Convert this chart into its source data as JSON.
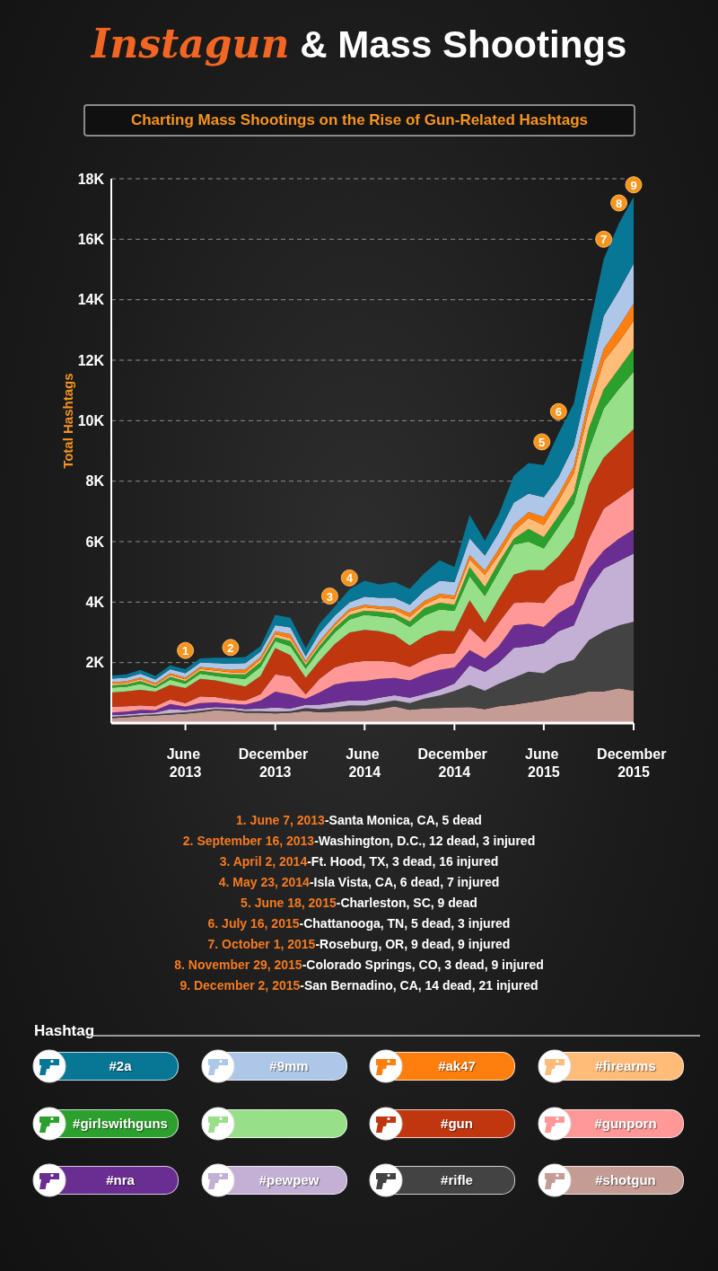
{
  "chart_data": {
    "type": "area",
    "title": "Instagun & Mass Shootings",
    "subtitle": "Charting Mass Shootings on the Rise of Gun-Related Hashtags",
    "ylabel": "Total Hashtags",
    "legend_title": "Hashtag",
    "stacked": true,
    "grid": "y",
    "legend": "bottom",
    "x": [
      "2013-01",
      "2013-02",
      "2013-03",
      "2013-04",
      "2013-05",
      "2013-06",
      "2013-07",
      "2013-08",
      "2013-09",
      "2013-10",
      "2013-11",
      "2013-12",
      "2014-01",
      "2014-02",
      "2014-03",
      "2014-04",
      "2014-05",
      "2014-06",
      "2014-07",
      "2014-08",
      "2014-09",
      "2014-10",
      "2014-11",
      "2014-12",
      "2015-01",
      "2015-02",
      "2015-03",
      "2015-04",
      "2015-05",
      "2015-06",
      "2015-07",
      "2015-08",
      "2015-09",
      "2015-10",
      "2015-11",
      "2015-12"
    ],
    "xlim": [
      "2013-01",
      "2015-12"
    ],
    "xticks": [
      {
        "value": "2013-06",
        "label": "June 2013"
      },
      {
        "value": "2013-12",
        "label": "December 2013"
      },
      {
        "value": "2014-06",
        "label": "June 2014"
      },
      {
        "value": "2014-12",
        "label": "December 2014"
      },
      {
        "value": "2015-06",
        "label": "June 2015"
      },
      {
        "value": "2015-12",
        "label": "December 2015"
      }
    ],
    "ylim": [
      0,
      18000
    ],
    "yticks": [
      {
        "value": 2000,
        "label": "2K"
      },
      {
        "value": 4000,
        "label": "4K"
      },
      {
        "value": 6000,
        "label": "6K"
      },
      {
        "value": 8000,
        "label": "8K"
      },
      {
        "value": 10000,
        "label": "10K"
      },
      {
        "value": 12000,
        "label": "12K"
      },
      {
        "value": 14000,
        "label": "14K"
      },
      {
        "value": 16000,
        "label": "16K"
      },
      {
        "value": 18000,
        "label": "18K"
      }
    ],
    "series": [
      {
        "name": "#shotgun",
        "color": "#c49c94",
        "values": [
          160,
          190,
          230,
          250,
          280,
          310,
          360,
          420,
          400,
          340,
          340,
          320,
          340,
          400,
          360,
          380,
          400,
          410,
          460,
          550,
          440,
          480,
          500,
          520,
          530,
          460,
          560,
          610,
          680,
          760,
          860,
          930,
          1050,
          1050,
          1150,
          1070
        ]
      },
      {
        "name": "#rifle",
        "color": "#434343",
        "values": [
          50,
          50,
          40,
          40,
          50,
          50,
          50,
          50,
          50,
          50,
          50,
          60,
          50,
          100,
          100,
          130,
          190,
          170,
          200,
          200,
          220,
          330,
          410,
          540,
          730,
          610,
          740,
          890,
          1020,
          890,
          1090,
          1160,
          1690,
          1980,
          2080,
          2280
        ]
      },
      {
        "name": "#pewpew",
        "color": "#c5b0d5",
        "values": [
          50,
          50,
          60,
          60,
          130,
          70,
          70,
          60,
          60,
          70,
          90,
          130,
          90,
          100,
          150,
          170,
          160,
          160,
          180,
          170,
          180,
          150,
          200,
          250,
          650,
          620,
          690,
          990,
          840,
          990,
          1090,
          1140,
          1680,
          2080,
          2130,
          2260
        ]
      },
      {
        "name": "#nra",
        "color": "#6a2d91",
        "values": [
          90,
          90,
          110,
          70,
          170,
          110,
          180,
          150,
          130,
          150,
          260,
          530,
          460,
          200,
          400,
          600,
          620,
          650,
          620,
          570,
          570,
          650,
          650,
          530,
          500,
          440,
          540,
          740,
          740,
          540,
          590,
          700,
          690,
          590,
          740,
          790
        ]
      },
      {
        "name": "#gunporn",
        "color": "#ff9896",
        "values": [
          190,
          180,
          150,
          140,
          150,
          120,
          220,
          180,
          140,
          130,
          220,
          570,
          600,
          150,
          450,
          560,
          620,
          670,
          600,
          530,
          450,
          500,
          520,
          470,
          730,
          540,
          790,
          740,
          720,
          790,
          890,
          790,
          990,
          1390,
          1340,
          1390
        ]
      },
      {
        "name": "#gun",
        "color": "#c0370f",
        "values": [
          470,
          490,
          510,
          480,
          480,
          500,
          580,
          550,
          530,
          470,
          600,
          870,
          700,
          550,
          600,
          770,
          1000,
          1020,
          980,
          900,
          700,
          770,
          780,
          730,
          920,
          640,
          790,
          940,
          1060,
          1090,
          990,
          1430,
          1790,
          1690,
          1830,
          1930
        ]
      },
      {
        "color": "#98df8a",
        "values": [
          160,
          150,
          200,
          120,
          170,
          140,
          170,
          150,
          190,
          250,
          300,
          230,
          300,
          300,
          350,
          380,
          430,
          500,
          490,
          550,
          620,
          680,
          700,
          670,
          800,
          890,
          890,
          990,
          940,
          720,
          990,
          1100,
          1180,
          1620,
          1780,
          1900
        ]
      },
      {
        "name": "#girlswithguns",
        "color": "#2ca02c",
        "values": [
          80,
          80,
          90,
          60,
          100,
          90,
          100,
          100,
          110,
          150,
          150,
          130,
          170,
          120,
          140,
          150,
          150,
          130,
          150,
          150,
          180,
          240,
          220,
          200,
          300,
          300,
          300,
          200,
          420,
          370,
          350,
          370,
          690,
          630,
          670,
          770
        ]
      },
      {
        "name": "#firearms",
        "color": "#ffbb78",
        "values": [
          50,
          50,
          60,
          50,
          60,
          60,
          60,
          80,
          70,
          70,
          90,
          100,
          100,
          80,
          80,
          80,
          120,
          120,
          100,
          120,
          150,
          110,
          180,
          200,
          250,
          400,
          250,
          250,
          360,
          400,
          500,
          630,
          600,
          940,
          890,
          920
        ]
      },
      {
        "name": "#ak47",
        "color": "#ff7f0e",
        "values": [
          50,
          50,
          60,
          50,
          60,
          60,
          70,
          70,
          80,
          100,
          80,
          100,
          130,
          60,
          80,
          80,
          80,
          80,
          80,
          100,
          130,
          130,
          120,
          100,
          150,
          140,
          200,
          200,
          200,
          270,
          200,
          230,
          390,
          400,
          500,
          560
        ]
      },
      {
        "name": "#9mm",
        "color": "#aec7e8",
        "values": [
          120,
          120,
          120,
          120,
          130,
          140,
          140,
          170,
          200,
          200,
          180,
          200,
          220,
          150,
          270,
          250,
          220,
          270,
          280,
          300,
          270,
          340,
          430,
          450,
          550,
          500,
          540,
          740,
          610,
          650,
          590,
          690,
          600,
          1090,
          1190,
          1320
        ]
      },
      {
        "name": "#2a",
        "color": "#087795",
        "values": [
          100,
          110,
          130,
          120,
          130,
          130,
          140,
          180,
          200,
          200,
          180,
          340,
          320,
          270,
          300,
          300,
          430,
          530,
          440,
          520,
          530,
          580,
          670,
          500,
          770,
          490,
          590,
          890,
          1010,
          1060,
          1440,
          1390,
          1680,
          1880,
          2220,
          2210
        ]
      }
    ],
    "annotations": [
      {
        "text": "1",
        "x": "2013-06",
        "y": 2400
      },
      {
        "text": "2",
        "x": "2013-09",
        "y": 2500
      },
      {
        "text": "3",
        "x": "2014-03-22",
        "y": 4200
      },
      {
        "text": "4",
        "x": "2014-05",
        "y": 4800
      },
      {
        "text": "5",
        "x": "2015-05-28",
        "y": 9300
      },
      {
        "text": "6",
        "x": "2015-07",
        "y": 10300
      },
      {
        "text": "7",
        "x": "2015-10",
        "y": 16000
      },
      {
        "text": "8",
        "x": "2015-11",
        "y": 17200
      },
      {
        "text": "9",
        "x": "2015-12",
        "y": 17800
      },
      "1. June 7, 2013-Santa Monica, CA, 5 dead",
      "2. September 16, 2013-Washington, D.C., 12 dead, 3 injured",
      "3. April 2, 2014-Ft. Hood, TX, 3 dead, 16 injured",
      "4. May 23, 2014-Isla Vista, CA, 6 dead, 7 injured",
      "5. June 18, 2015-Charleston, SC, 9 dead",
      "6. July 16, 2015-Chattanooga, TN, 5 dead, 3 injured",
      "7. October 1, 2015-Roseburg, OR, 9 dead, 9 injured",
      "8. November 29, 2015-Colorado Springs, CO, 3 dead, 9 injured",
      "9. December 2, 2015-San Bernadino, CA, 14 dead, 21 injured"
    ]
  }
}
